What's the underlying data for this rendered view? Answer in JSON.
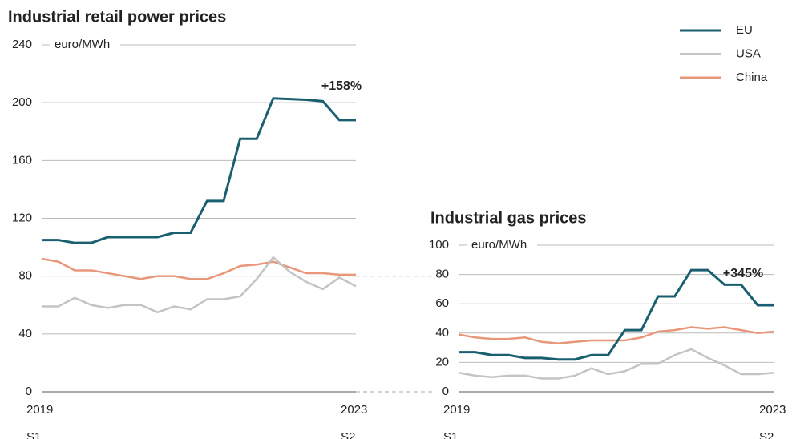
{
  "chart_data": [
    {
      "type": "line",
      "title": "Industrial retail power prices",
      "y_label": "euro/MWh",
      "annotation": "+158%",
      "legend": "top-right",
      "grid": true,
      "categories": [
        "2019\nS1",
        null,
        null,
        null,
        null,
        null,
        null,
        null,
        null,
        null,
        null,
        null,
        null,
        null,
        null,
        null,
        null,
        null,
        null,
        "2023\nS2"
      ],
      "ylim": [
        0,
        240
      ],
      "yticks": [
        0,
        40,
        80,
        120,
        160,
        200,
        240
      ],
      "series": [
        {
          "name": "EU",
          "color": "#1a5f6f",
          "values": [
            105,
            105,
            103,
            103,
            107,
            107,
            107,
            107,
            110,
            110,
            132,
            132,
            175,
            175,
            203,
            202.5,
            202,
            201,
            188,
            188
          ]
        },
        {
          "name": "USA",
          "color": "#c4c4c4",
          "values": [
            59,
            59,
            65,
            60,
            58,
            60,
            60,
            55,
            59,
            57,
            64,
            64,
            66,
            78,
            93,
            83,
            76,
            71,
            79,
            73
          ]
        },
        {
          "name": "China",
          "color": "#e8977a",
          "values": [
            92,
            90,
            84,
            84,
            82,
            80,
            78,
            80,
            80,
            78,
            78,
            82,
            87,
            88,
            90,
            86,
            82,
            82,
            81,
            81
          ]
        }
      ]
    },
    {
      "type": "line",
      "title": "Industrial gas prices",
      "y_label": "euro/MWh",
      "annotation": "+345%",
      "grid": true,
      "categories": [
        "2019\nS1",
        null,
        null,
        null,
        null,
        null,
        null,
        null,
        null,
        null,
        null,
        null,
        null,
        null,
        null,
        null,
        null,
        null,
        null,
        "2023\nS2"
      ],
      "ylim": [
        0,
        100
      ],
      "yticks": [
        0,
        20,
        40,
        60,
        80,
        100
      ],
      "series": [
        {
          "color": "#1a5f6f",
          "values": [
            27,
            27,
            25,
            25,
            23,
            23,
            22,
            22,
            25,
            25,
            42,
            42,
            65,
            65,
            83,
            83,
            73,
            73,
            59,
            59
          ]
        },
        {
          "color": "#c4c4c4",
          "values": [
            13,
            11,
            10,
            11,
            11,
            9,
            9,
            11,
            16,
            12,
            14,
            19,
            19,
            25,
            29,
            23,
            18,
            12,
            12,
            13
          ]
        },
        {
          "color": "#e8977a",
          "values": [
            39,
            37,
            36,
            36,
            37,
            34,
            33,
            34,
            35,
            35,
            35,
            37,
            41,
            42,
            44,
            43,
            44,
            42,
            40,
            41
          ]
        }
      ]
    }
  ]
}
